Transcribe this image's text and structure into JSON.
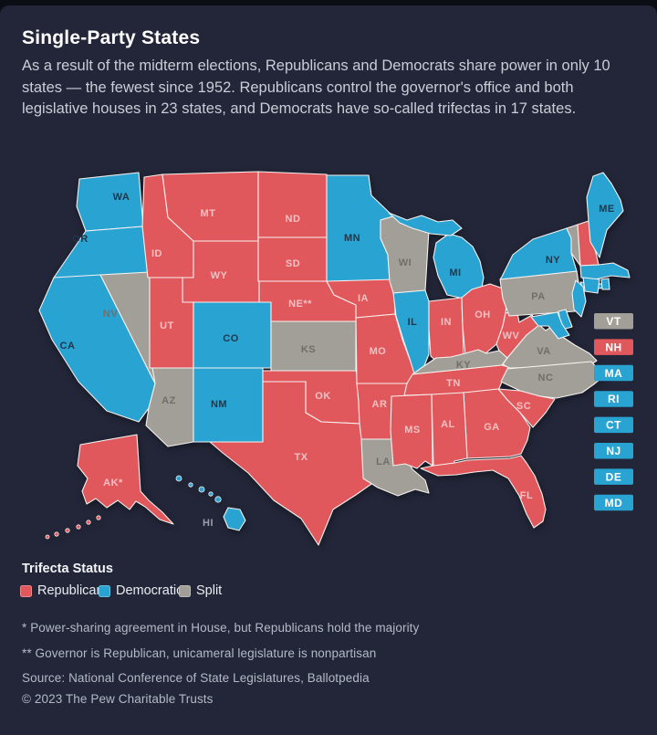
{
  "page": {
    "title": "Single-Party States",
    "intro": "As a result of the midterm elections, Republicans and Democrats share power in only 10 states — the fewest since 1952. Republicans control the governor's office and both legislative houses in 23 states, and Democrats have so-called trifectas in 17 states."
  },
  "colors": {
    "republican": "#e1585c",
    "democratic": "#29a3d2",
    "split": "#a19f98",
    "card_background": "#222638",
    "page_background": "#0c0e16",
    "state_border": "#f7f1ef",
    "label_on_republican": "#f4c0c2",
    "label_on_democratic": "#20374b",
    "label_on_split": "#6f6e68",
    "label_on_water": "#99a0ac",
    "tag_text": "#ffffff"
  },
  "map": {
    "states": [
      {
        "id": "WA",
        "label": "WA",
        "party": "democratic"
      },
      {
        "id": "OR",
        "label": "OR",
        "party": "democratic"
      },
      {
        "id": "CA",
        "label": "CA",
        "party": "democratic"
      },
      {
        "id": "NV",
        "label": "NV",
        "party": "split"
      },
      {
        "id": "ID",
        "label": "ID",
        "party": "republican"
      },
      {
        "id": "MT",
        "label": "MT",
        "party": "republican"
      },
      {
        "id": "WY",
        "label": "WY",
        "party": "republican"
      },
      {
        "id": "UT",
        "label": "UT",
        "party": "republican"
      },
      {
        "id": "CO",
        "label": "CO",
        "party": "democratic"
      },
      {
        "id": "AZ",
        "label": "AZ",
        "party": "split"
      },
      {
        "id": "NM",
        "label": "NM",
        "party": "democratic"
      },
      {
        "id": "ND",
        "label": "ND",
        "party": "republican"
      },
      {
        "id": "SD",
        "label": "SD",
        "party": "republican"
      },
      {
        "id": "NE",
        "label": "NE**",
        "party": "republican"
      },
      {
        "id": "KS",
        "label": "KS",
        "party": "split"
      },
      {
        "id": "OK",
        "label": "OK",
        "party": "republican"
      },
      {
        "id": "TX",
        "label": "TX",
        "party": "republican"
      },
      {
        "id": "MN",
        "label": "MN",
        "party": "democratic"
      },
      {
        "id": "IA",
        "label": "IA",
        "party": "republican"
      },
      {
        "id": "MO",
        "label": "MO",
        "party": "republican"
      },
      {
        "id": "AR",
        "label": "AR",
        "party": "republican"
      },
      {
        "id": "LA",
        "label": "LA",
        "party": "split"
      },
      {
        "id": "WI",
        "label": "WI",
        "party": "split"
      },
      {
        "id": "IL",
        "label": "IL",
        "party": "democratic"
      },
      {
        "id": "MI",
        "label": "MI",
        "party": "democratic"
      },
      {
        "id": "IN",
        "label": "IN",
        "party": "republican"
      },
      {
        "id": "OH",
        "label": "OH",
        "party": "republican"
      },
      {
        "id": "KY",
        "label": "KY",
        "party": "split"
      },
      {
        "id": "TN",
        "label": "TN",
        "party": "republican"
      },
      {
        "id": "WV",
        "label": "WV",
        "party": "republican"
      },
      {
        "id": "VA",
        "label": "VA",
        "party": "split"
      },
      {
        "id": "NC",
        "label": "NC",
        "party": "split"
      },
      {
        "id": "SC",
        "label": "SC",
        "party": "republican"
      },
      {
        "id": "GA",
        "label": "GA",
        "party": "republican"
      },
      {
        "id": "AL",
        "label": "AL",
        "party": "republican"
      },
      {
        "id": "MS",
        "label": "MS",
        "party": "republican"
      },
      {
        "id": "FL",
        "label": "FL",
        "party": "republican"
      },
      {
        "id": "PA",
        "label": "PA",
        "party": "split"
      },
      {
        "id": "NY",
        "label": "NY",
        "party": "democratic"
      },
      {
        "id": "VT",
        "label": "",
        "party": "split"
      },
      {
        "id": "NH",
        "label": "",
        "party": "republican"
      },
      {
        "id": "ME",
        "label": "ME",
        "party": "democratic"
      },
      {
        "id": "MA",
        "label": "",
        "party": "democratic"
      },
      {
        "id": "RI",
        "label": "",
        "party": "democratic"
      },
      {
        "id": "CT",
        "label": "",
        "party": "democratic"
      },
      {
        "id": "NJ",
        "label": "",
        "party": "democratic"
      },
      {
        "id": "DE",
        "label": "",
        "party": "democratic"
      },
      {
        "id": "MD",
        "label": "",
        "party": "democratic"
      },
      {
        "id": "AK",
        "label": "AK*",
        "party": "republican"
      },
      {
        "id": "HI",
        "label": "HI",
        "party": "democratic"
      }
    ],
    "small_state_tags": [
      {
        "id": "VT",
        "party": "split"
      },
      {
        "id": "NH",
        "party": "republican"
      },
      {
        "id": "MA",
        "party": "democratic"
      },
      {
        "id": "RI",
        "party": "democratic"
      },
      {
        "id": "CT",
        "party": "democratic"
      },
      {
        "id": "NJ",
        "party": "democratic"
      },
      {
        "id": "DE",
        "party": "democratic"
      },
      {
        "id": "MD",
        "party": "democratic"
      }
    ]
  },
  "legend": {
    "title": "Trifecta Status",
    "items": [
      {
        "label": "Republican",
        "party": "republican"
      },
      {
        "label": "Democratic",
        "party": "democratic"
      },
      {
        "label": "Split",
        "party": "split"
      }
    ]
  },
  "footnotes": [
    "* Power-sharing agreement in House, but Republicans hold the majority",
    "** Governor is Republican, unicameral legislature is nonpartisan"
  ],
  "source": "Source: National Conference of State Legislatures, Ballotpedia",
  "copyright": "© 2023 The Pew Charitable Trusts"
}
